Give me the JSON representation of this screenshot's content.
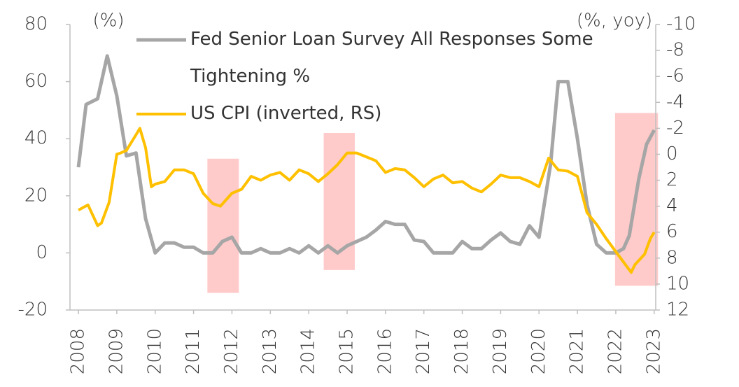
{
  "chart_data": {
    "type": "line",
    "y_label": "(%)",
    "y2_label": "(%, yoy)",
    "xlim": [
      2007.78,
      2023.04
    ],
    "xticks": [
      2008,
      2009,
      2010,
      2011,
      2012,
      2013,
      2014,
      2015,
      2016,
      2017,
      2018,
      2019,
      2020,
      2021,
      2022,
      2023
    ],
    "ylim": [
      -20,
      80
    ],
    "yticks": [
      -20,
      0,
      20,
      40,
      60,
      80
    ],
    "y2lim": [
      -10,
      12
    ],
    "y2_inverted": true,
    "y2ticks": [
      -10,
      -8,
      -6,
      -4,
      -2,
      0,
      2,
      4,
      6,
      8,
      10,
      12
    ],
    "series": [
      {
        "name": "Fed Senior Loan Survey All Responses Some Tightening %",
        "color": "#a6a6a6",
        "x": [
          2008.0,
          2008.2,
          2008.5,
          2008.75,
          2009.0,
          2009.25,
          2009.5,
          2009.75,
          2010.0,
          2010.25,
          2010.5,
          2010.75,
          2011.0,
          2011.25,
          2011.5,
          2011.75,
          2012.0,
          2012.25,
          2012.5,
          2012.75,
          2013.0,
          2013.25,
          2013.5,
          2013.75,
          2014.0,
          2014.25,
          2014.5,
          2014.75,
          2015.0,
          2015.25,
          2015.5,
          2015.75,
          2016.0,
          2016.25,
          2016.5,
          2016.75,
          2017.0,
          2017.25,
          2017.5,
          2017.75,
          2018.0,
          2018.25,
          2018.5,
          2018.75,
          2019.0,
          2019.25,
          2019.5,
          2019.75,
          2020.0,
          2020.3,
          2020.5,
          2020.75,
          2021.0,
          2021.25,
          2021.5,
          2021.75,
          2022.0,
          2022.2,
          2022.35,
          2022.6,
          2022.8,
          2023.0
        ],
        "values": [
          30,
          52,
          54,
          69,
          55,
          34,
          35,
          12,
          0,
          3.5,
          3.5,
          2,
          2,
          0,
          0,
          4,
          5.5,
          0,
          0,
          1.5,
          0,
          0,
          1.5,
          0,
          2.5,
          0,
          2.5,
          0,
          2.5,
          4,
          5.5,
          8,
          11,
          10,
          10,
          4.5,
          4,
          0,
          0,
          0,
          4,
          1.5,
          1.5,
          4.5,
          7,
          4,
          3,
          9.5,
          5.5,
          31,
          60,
          60,
          40,
          17,
          3,
          0,
          0,
          1.5,
          6,
          26,
          38,
          43
        ]
      },
      {
        "name": "US CPI (inverted, RS)",
        "color": "#ffc000",
        "axis": "y2",
        "x": [
          2008.0,
          2008.25,
          2008.5,
          2008.6,
          2008.8,
          2009.0,
          2009.1,
          2009.25,
          2009.5,
          2009.6,
          2009.75,
          2009.9,
          2010.0,
          2010.25,
          2010.5,
          2010.75,
          2011.0,
          2011.25,
          2011.5,
          2011.7,
          2012.0,
          2012.25,
          2012.5,
          2012.75,
          2013.0,
          2013.25,
          2013.5,
          2013.75,
          2014.0,
          2014.25,
          2014.5,
          2014.75,
          2015.0,
          2015.25,
          2015.5,
          2015.75,
          2016.0,
          2016.25,
          2016.5,
          2016.75,
          2017.0,
          2017.25,
          2017.5,
          2017.75,
          2018.0,
          2018.25,
          2018.5,
          2018.75,
          2019.0,
          2019.25,
          2019.5,
          2019.75,
          2020.0,
          2020.25,
          2020.5,
          2020.75,
          2021.0,
          2021.25,
          2021.5,
          2021.75,
          2022.0,
          2022.25,
          2022.4,
          2022.5,
          2022.75,
          2022.9,
          2023.0
        ],
        "values": [
          4.3,
          3.9,
          5.5,
          5.3,
          3.7,
          0,
          -0.1,
          -0.3,
          -1.5,
          -2,
          -0.5,
          2.5,
          2.3,
          2.1,
          1.2,
          1.2,
          1.5,
          3,
          3.8,
          4,
          3,
          2.7,
          1.7,
          2,
          1.6,
          1.4,
          2,
          1.2,
          1.5,
          2.1,
          1.5,
          0.8,
          -0.1,
          -0.1,
          0.2,
          0.5,
          1.4,
          1.1,
          1.2,
          1.8,
          2.5,
          1.9,
          1.6,
          2.2,
          2.1,
          2.6,
          2.9,
          2.3,
          1.6,
          1.8,
          1.8,
          2.1,
          2.5,
          0.3,
          1.2,
          1.3,
          1.7,
          4.5,
          5.4,
          6.5,
          7.5,
          8.5,
          9.1,
          8.5,
          7.7,
          6.5,
          6.0
        ]
      }
    ],
    "highlights": [
      {
        "x": [
          2011.36,
          2012.18
        ],
        "y": [
          -14,
          33
        ]
      },
      {
        "x": [
          2014.39,
          2015.2
        ],
        "y": [
          -6,
          42
        ]
      },
      {
        "x": [
          2021.98,
          2023.1
        ],
        "y": [
          -11.5,
          49
        ]
      }
    ]
  }
}
